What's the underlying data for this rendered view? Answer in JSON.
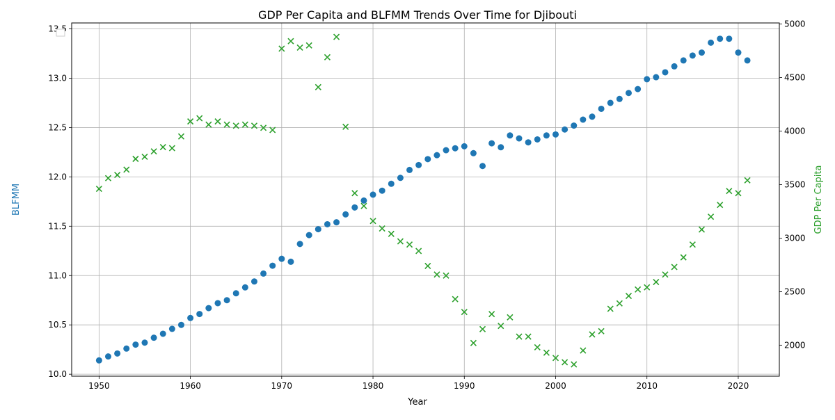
{
  "chart_data": {
    "type": "scatter",
    "title": "GDP Per Capita and BLFMM Trends Over Time for Djibouti",
    "xlabel": "Year",
    "ylabel_left": "BLFMM",
    "ylabel_right": "GDP Per Capita",
    "xlim": [
      1947,
      2024.5
    ],
    "ylim_left": [
      9.98,
      13.56
    ],
    "ylim_right": [
      1710,
      5010
    ],
    "x_ticks": [
      1950,
      1960,
      1970,
      1980,
      1990,
      2000,
      2010,
      2020
    ],
    "y_ticks_left": [
      10.0,
      10.5,
      11.0,
      11.5,
      12.0,
      12.5,
      13.0,
      13.5
    ],
    "y_ticks_right": [
      2000,
      2500,
      3000,
      3500,
      4000,
      4500,
      5000
    ],
    "grid": true,
    "legend": "top-left (empty)",
    "colors": {
      "blfmm": "#1f77b4",
      "gdp": "#2ca02c"
    },
    "series": [
      {
        "axis": "left",
        "marker": "circle",
        "x": [
          1950,
          1951,
          1952,
          1953,
          1954,
          1955,
          1956,
          1957,
          1958,
          1959,
          1960,
          1961,
          1962,
          1963,
          1964,
          1965,
          1966,
          1967,
          1968,
          1969,
          1970,
          1971,
          1972,
          1973,
          1974,
          1975,
          1976,
          1977,
          1978,
          1979,
          1980,
          1981,
          1982,
          1983,
          1984,
          1985,
          1986,
          1987,
          1988,
          1989,
          1990,
          1991,
          1992,
          1993,
          1994,
          1995,
          1996,
          1997,
          1998,
          1999,
          2000,
          2001,
          2002,
          2003,
          2004,
          2005,
          2006,
          2007,
          2008,
          2009,
          2010,
          2011,
          2012,
          2013,
          2014,
          2015,
          2016,
          2017,
          2018,
          2019,
          2020,
          2021
        ],
        "values": [
          10.14,
          10.18,
          10.21,
          10.26,
          10.3,
          10.32,
          10.37,
          10.41,
          10.46,
          10.5,
          10.57,
          10.61,
          10.67,
          10.72,
          10.75,
          10.82,
          10.88,
          10.94,
          11.02,
          11.1,
          11.17,
          11.14,
          11.32,
          11.41,
          11.47,
          11.52,
          11.54,
          11.62,
          11.69,
          11.76,
          11.82,
          11.86,
          11.93,
          11.99,
          12.07,
          12.12,
          12.18,
          12.22,
          12.27,
          12.29,
          12.31,
          12.24,
          12.11,
          12.34,
          12.3,
          12.42,
          12.39,
          12.35,
          12.38,
          12.42,
          12.43,
          12.48,
          12.52,
          12.58,
          12.61,
          12.69,
          12.75,
          12.79,
          12.85,
          12.89,
          12.99,
          13.01,
          13.06,
          13.12,
          13.18,
          13.23,
          13.26,
          13.36,
          13.4,
          13.4,
          13.26,
          13.18
        ]
      },
      {
        "axis": "right",
        "marker": "x",
        "x": [
          1950,
          1951,
          1952,
          1953,
          1954,
          1955,
          1956,
          1957,
          1958,
          1959,
          1960,
          1961,
          1962,
          1963,
          1964,
          1965,
          1966,
          1967,
          1968,
          1969,
          1970,
          1971,
          1972,
          1973,
          1974,
          1975,
          1976,
          1977,
          1978,
          1979,
          1980,
          1981,
          1982,
          1983,
          1984,
          1985,
          1986,
          1987,
          1988,
          1989,
          1990,
          1991,
          1992,
          1993,
          1994,
          1995,
          1996,
          1997,
          1998,
          1999,
          2000,
          2001,
          2002,
          2003,
          2004,
          2005,
          2006,
          2007,
          2008,
          2009,
          2010,
          2011,
          2012,
          2013,
          2014,
          2015,
          2016,
          2017,
          2018,
          2019,
          2020,
          2021
        ],
        "values": [
          3460,
          3560,
          3590,
          3640,
          3740,
          3760,
          3810,
          3850,
          3840,
          3950,
          4090,
          4120,
          4060,
          4090,
          4060,
          4050,
          4060,
          4050,
          4030,
          4010,
          4770,
          4840,
          4780,
          4800,
          4410,
          4690,
          4880,
          4040,
          3420,
          3300,
          3160,
          3090,
          3040,
          2970,
          2940,
          2880,
          2740,
          2660,
          2650,
          2430,
          2310,
          2020,
          2150,
          2290,
          2180,
          2260,
          2080,
          2080,
          1980,
          1930,
          1880,
          1840,
          1820,
          1950,
          2100,
          2130,
          2340,
          2390,
          2460,
          2520,
          2540,
          2590,
          2660,
          2730,
          2820,
          2940,
          3080,
          3200,
          3310,
          3440,
          3420,
          3540
        ]
      }
    ]
  }
}
